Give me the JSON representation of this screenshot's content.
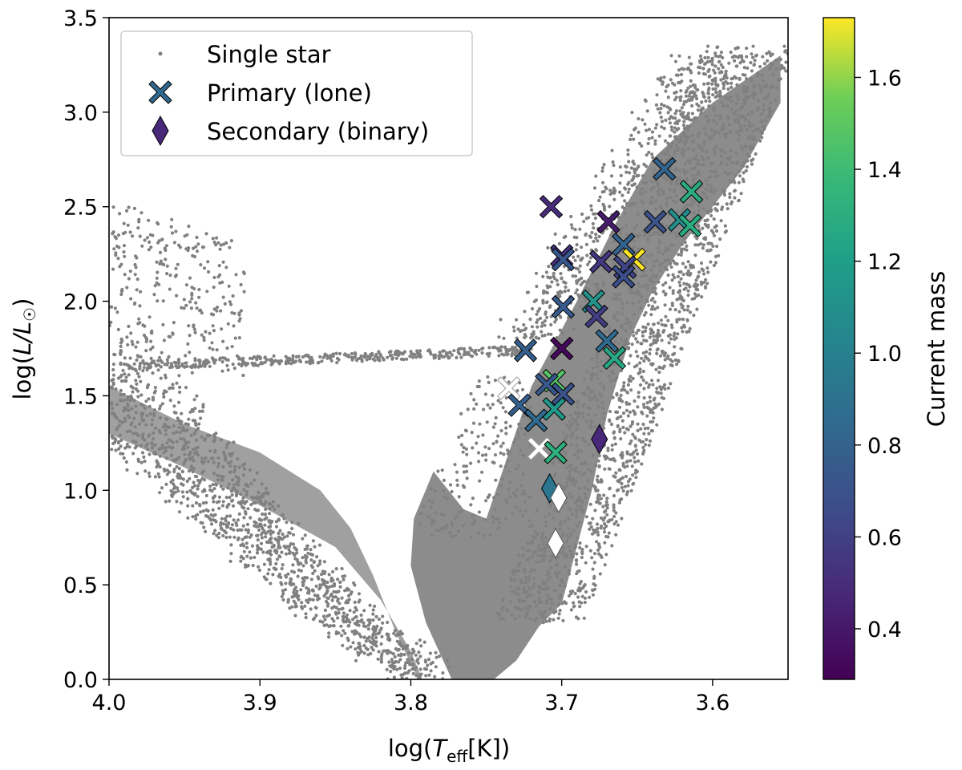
{
  "chart_data": {
    "type": "scatter",
    "x_axis": {
      "reversed": true,
      "range": [
        4.0,
        3.55
      ],
      "ticks": [
        "4.0",
        "3.9",
        "3.8",
        "3.7",
        "3.6"
      ],
      "tick_values": [
        4.0,
        3.9,
        3.8,
        3.7,
        3.6
      ],
      "label_prefix": "log(",
      "label_symbol": "T",
      "label_sub": "eff",
      "label_suffix": "[K])"
    },
    "y_axis": {
      "range": [
        0.0,
        3.5
      ],
      "ticks": [
        "0.0",
        "0.5",
        "1.0",
        "1.5",
        "2.0",
        "2.5",
        "3.0",
        "3.5"
      ],
      "tick_values": [
        0.0,
        0.5,
        1.0,
        1.5,
        2.0,
        2.5,
        3.0,
        3.5
      ],
      "label_prefix": "log(",
      "label_symbol": "L/L",
      "label_sub": "☉",
      "label_suffix": ")"
    },
    "colorbar": {
      "label": "Current mass",
      "colormap": "viridis",
      "range": [
        0.29,
        1.73
      ],
      "ticks": [
        "0.4",
        "0.6",
        "0.8",
        "1.0",
        "1.2",
        "1.4",
        "1.6"
      ],
      "tick_values": [
        0.4,
        0.6,
        0.8,
        1.0,
        1.2,
        1.4,
        1.6
      ]
    },
    "legend": {
      "placement": "top-left",
      "entries": [
        "Single star",
        "Primary (lone)",
        "Secondary (binary)"
      ]
    },
    "single_star_color": "#808080",
    "primary_lone": [
      {
        "x": 3.632,
        "y": 2.7,
        "mass": 0.75
      },
      {
        "x": 3.614,
        "y": 2.58,
        "mass": 1.18
      },
      {
        "x": 3.707,
        "y": 2.5,
        "mass": 0.47
      },
      {
        "x": 3.638,
        "y": 2.42,
        "mass": 0.65
      },
      {
        "x": 3.622,
        "y": 2.43,
        "mass": 1.0
      },
      {
        "x": 3.615,
        "y": 2.4,
        "mass": 1.18
      },
      {
        "x": 3.669,
        "y": 2.42,
        "mass": 0.4
      },
      {
        "x": 3.659,
        "y": 2.3,
        "mass": 0.74
      },
      {
        "x": 3.652,
        "y": 2.22,
        "mass": 1.73
      },
      {
        "x": 3.7,
        "y": 2.24,
        "mass": 0.48
      },
      {
        "x": 3.699,
        "y": 2.22,
        "mass": 0.68
      },
      {
        "x": 3.674,
        "y": 2.21,
        "mass": 0.52
      },
      {
        "x": 3.658,
        "y": 2.18,
        "mass": 0.58
      },
      {
        "x": 3.659,
        "y": 2.13,
        "mass": 0.63
      },
      {
        "x": 3.679,
        "y": 2.0,
        "mass": 1.02
      },
      {
        "x": 3.699,
        "y": 1.97,
        "mass": 0.7
      },
      {
        "x": 3.677,
        "y": 1.92,
        "mass": 0.55
      },
      {
        "x": 3.67,
        "y": 1.79,
        "mass": 0.78
      },
      {
        "x": 3.665,
        "y": 1.7,
        "mass": 1.15
      },
      {
        "x": 3.724,
        "y": 1.74,
        "mass": 0.72
      },
      {
        "x": 3.7,
        "y": 1.75,
        "mass": 0.32
      },
      {
        "x": 3.705,
        "y": 1.58,
        "mass": 1.34
      },
      {
        "x": 3.71,
        "y": 1.56,
        "mass": 0.68
      },
      {
        "x": 3.735,
        "y": 1.54,
        "mass": null
      },
      {
        "x": 3.699,
        "y": 1.51,
        "mass": 0.66
      },
      {
        "x": 3.728,
        "y": 1.45,
        "mass": 0.72
      },
      {
        "x": 3.705,
        "y": 1.43,
        "mass": 1.06
      },
      {
        "x": 3.717,
        "y": 1.37,
        "mass": 0.78
      },
      {
        "x": 3.715,
        "y": 1.22,
        "mass": null
      },
      {
        "x": 3.704,
        "y": 1.2,
        "mass": 1.2
      }
    ],
    "secondary_binary": [
      {
        "x": 3.675,
        "y": 1.27,
        "mass": 0.45
      },
      {
        "x": 3.708,
        "y": 1.01,
        "mass": 0.85
      },
      {
        "x": 3.702,
        "y": 0.96,
        "mass": null
      },
      {
        "x": 3.704,
        "y": 0.72,
        "mass": null
      }
    ]
  }
}
